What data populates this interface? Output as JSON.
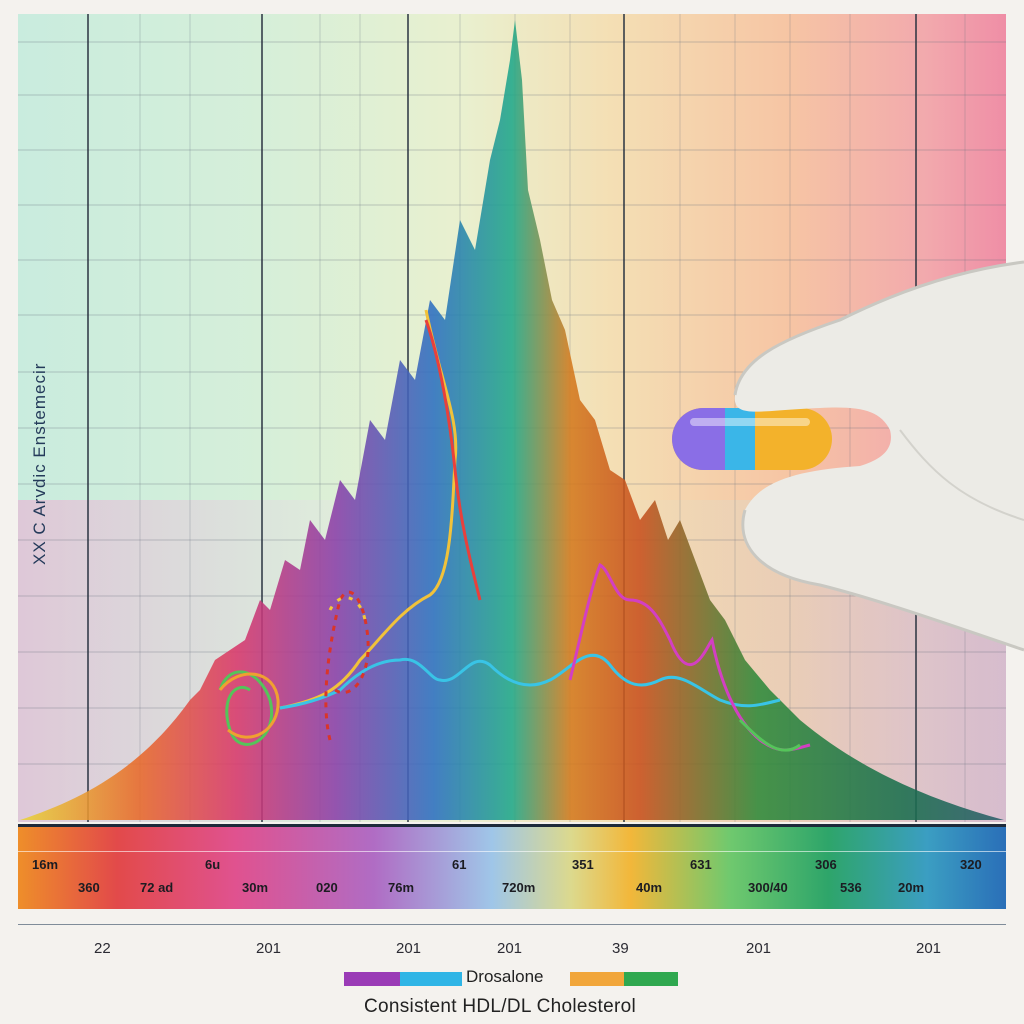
{
  "y_axis_label": "XX C Arvdic Enstemecir",
  "spectrum_labels_top": [
    "16m",
    "6u",
    "61",
    "351",
    "631",
    "306",
    "320"
  ],
  "spectrum_labels_bottom": [
    "360",
    "72 ad",
    "30m",
    "020",
    "76m",
    "720m",
    "40m",
    "300/40",
    "536",
    "20m"
  ],
  "year_labels": [
    "22",
    "201",
    "201",
    "201",
    "39",
    "201",
    "201"
  ],
  "legend": {
    "series_name": "Drosalone"
  },
  "footer": {
    "title": "Consistent HDL/DL Cholesterol"
  },
  "colors": {
    "purple": "#9a3bb6",
    "cyan": "#2fb5e6",
    "orange": "#f1a63a",
    "green": "#2fa84f",
    "capsule_left": "#8a6ee6",
    "capsule_right": "#f3b22b"
  }
}
